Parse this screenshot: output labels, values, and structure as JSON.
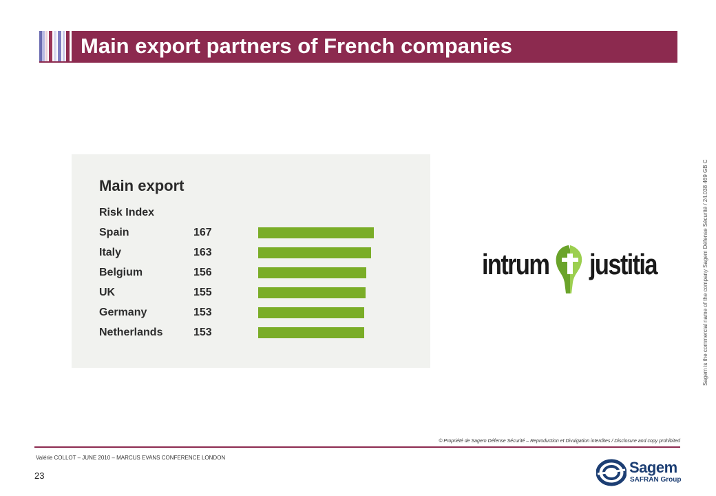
{
  "slide": {
    "title": "Main export partners of French companies",
    "page_number": "23",
    "footer": "Valérie COLLOT – JUNE 2010 – MARCUS EVANS  CONFERENCE LONDON",
    "copyright": "© Propriété de Sagem  Défense Sécurité – Reproduction  et Divulgation  interdites  / Disclosure and copy prohibited",
    "side_note": "Sagem is the commercial name of the company Sagem Défense Sécurité  / 24.038  469 GB   C",
    "colors": {
      "accent": "#8c2a4f",
      "bar": "#7aad27",
      "panel": "#f1f2ef"
    }
  },
  "chart_data": {
    "type": "bar",
    "orientation": "horizontal",
    "title": "Main export",
    "subtitle": "Risk Index",
    "categories": [
      "Spain",
      "Italy",
      "Belgium",
      "UK",
      "Germany",
      "Netherlands"
    ],
    "values": [
      167,
      163,
      156,
      155,
      153,
      153
    ],
    "grid": false
  },
  "logos": {
    "partner": {
      "left_word": "intrum",
      "right_word": "justitia",
      "icon": "intrum-justitia-emblem-icon"
    },
    "company": {
      "name": "Sagem",
      "group": "SAFRAN Group",
      "icon": "sagem-swirl-icon"
    }
  }
}
